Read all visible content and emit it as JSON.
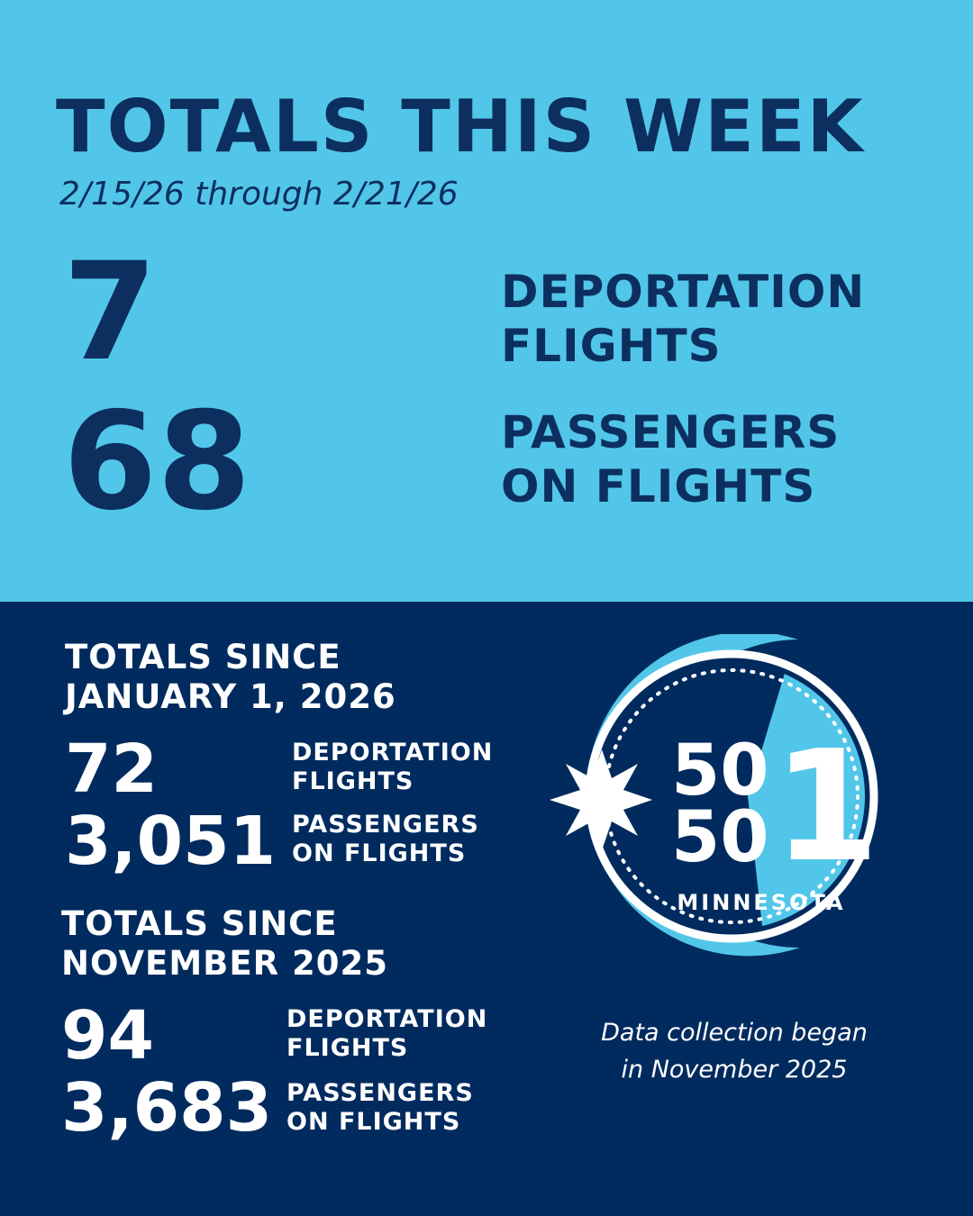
{
  "weekly": {
    "title": "TOTALS THIS WEEK",
    "date_range": "2/15/26 through 2/21/26",
    "flights_count": "7",
    "flights_label": "DEPORTATION\nFLIGHTS",
    "passengers_count": "68",
    "passengers_label": "PASSENGERS\nON FLIGHTS"
  },
  "since_january": {
    "heading": "TOTALS SINCE\nJANUARY 1, 2026",
    "flights_count": "72",
    "flights_label": "DEPORTATION\nFLIGHTS",
    "passengers_count": "3,051",
    "passengers_label": "PASSENGERS\nON FLIGHTS"
  },
  "since_november": {
    "heading": "TOTALS SINCE\nNOVEMBER 2025",
    "flights_count": "94",
    "flights_label": "DEPORTATION\nFLIGHTS",
    "passengers_count": "3,683",
    "passengers_label": "PASSENGERS\nON FLIGHTS"
  },
  "logo": {
    "digits_top": "50",
    "digits_bottom": "50",
    "digit_large": "1",
    "state": "MINNESOTA",
    "icon": "north-star-icon"
  },
  "footnote": "Data collection began\nin November 2025",
  "colors": {
    "light_blue": "#52c6e9",
    "navy": "#012b5e",
    "dark_text": "#0c2f5f",
    "white": "#ffffff"
  }
}
